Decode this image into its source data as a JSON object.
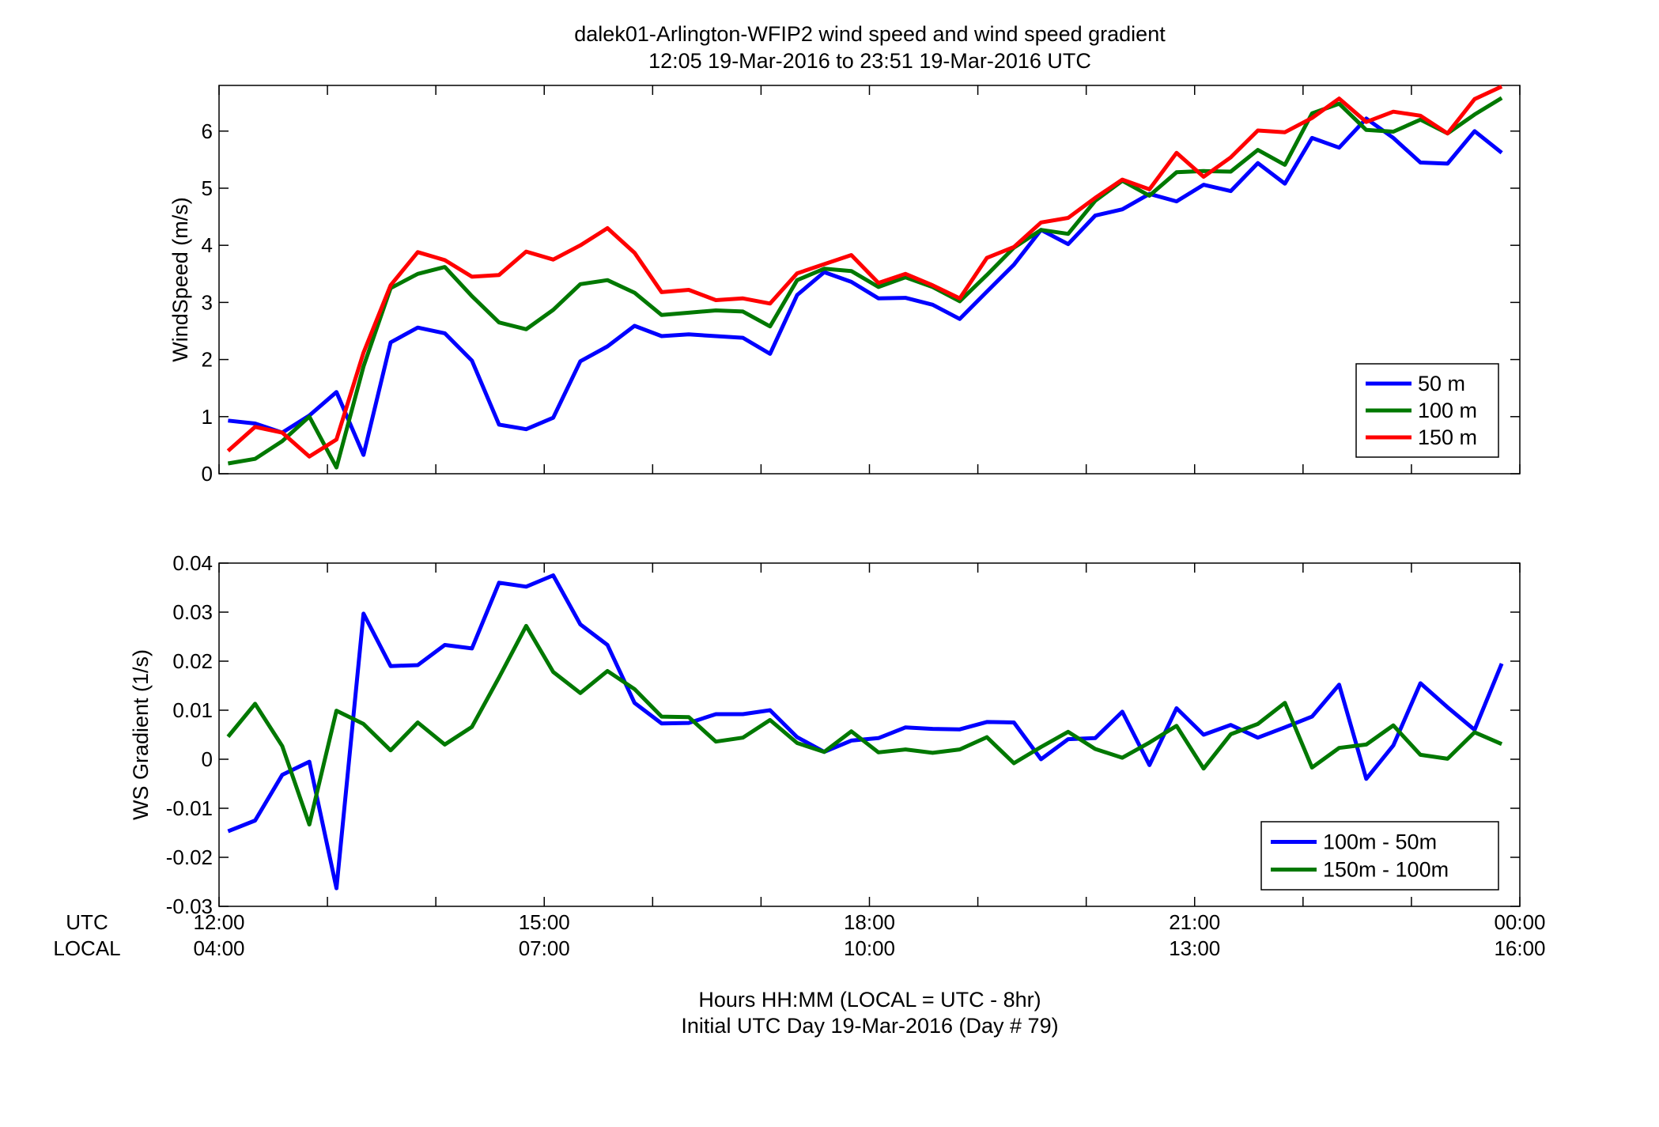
{
  "figure": {
    "title_line1": "dalek01-Arlington-WFIP2  wind speed and wind speed gradient",
    "title_line2": "12:05 19-Mar-2016 to 23:51 19-Mar-2016  UTC",
    "xlabel_line1": "Hours HH:MM  (LOCAL = UTC - 8hr)",
    "xlabel_line2": "Initial UTC Day 19-Mar-2016 (Day # 79)",
    "row_label_utc": "UTC",
    "row_label_local": "LOCAL",
    "x_ticks": [
      {
        "hour": 12,
        "utc": "12:00",
        "local": "04:00"
      },
      {
        "hour": 15,
        "utc": "15:00",
        "local": "07:00"
      },
      {
        "hour": 18,
        "utc": "18:00",
        "local": "10:00"
      },
      {
        "hour": 21,
        "utc": "21:00",
        "local": "13:00"
      },
      {
        "hour": 24,
        "utc": "00:00",
        "local": "16:00"
      }
    ]
  },
  "chart_data": [
    {
      "type": "line",
      "ylabel": "WindSpeed (m/s)",
      "xlim": [
        12,
        24
      ],
      "ylim": [
        0,
        6.8
      ],
      "y_ticks": [
        0,
        1,
        2,
        3,
        4,
        5,
        6
      ],
      "x_start": 12.083,
      "x_step": 0.25,
      "legend_position": "bottom-right",
      "series": [
        {
          "name": "50 m",
          "color": "#0000ff",
          "values": [
            0.93,
            0.88,
            0.72,
            1.02,
            1.43,
            0.33,
            2.3,
            2.56,
            2.46,
            1.98,
            0.86,
            0.78,
            0.98,
            1.97,
            2.23,
            2.59,
            2.41,
            2.44,
            2.41,
            2.38,
            2.1,
            3.13,
            3.53,
            3.36,
            3.07,
            3.08,
            2.96,
            2.71,
            3.19,
            3.66,
            4.27,
            4.02,
            4.52,
            4.63,
            4.9,
            4.77,
            5.06,
            4.95,
            5.44,
            5.08,
            5.88,
            5.71,
            6.22,
            5.88,
            5.45,
            5.43,
            6.0,
            5.62
          ]
        },
        {
          "name": "100 m",
          "color": "#007800",
          "values": [
            0.18,
            0.26,
            0.57,
            1.0,
            0.11,
            1.88,
            3.25,
            3.5,
            3.62,
            3.11,
            2.65,
            2.53,
            2.87,
            3.32,
            3.39,
            3.17,
            2.78,
            2.82,
            2.86,
            2.84,
            2.58,
            3.39,
            3.59,
            3.55,
            3.27,
            3.44,
            3.27,
            3.02,
            3.48,
            3.96,
            4.27,
            4.2,
            4.78,
            5.13,
            4.87,
            5.28,
            5.3,
            5.29,
            5.67,
            5.41,
            6.31,
            6.48,
            6.02,
            5.99,
            6.2,
            5.96,
            6.29,
            6.58
          ]
        },
        {
          "name": "150 m",
          "color": "#ff0000",
          "values": [
            0.4,
            0.82,
            0.72,
            0.3,
            0.6,
            2.12,
            3.3,
            3.88,
            3.74,
            3.45,
            3.48,
            3.89,
            3.75,
            4.0,
            4.3,
            3.87,
            3.18,
            3.22,
            3.04,
            3.07,
            2.98,
            3.51,
            3.67,
            3.83,
            3.34,
            3.5,
            3.3,
            3.07,
            3.78,
            3.97,
            4.4,
            4.48,
            4.83,
            5.15,
            4.98,
            5.62,
            5.2,
            5.54,
            6.01,
            5.98,
            6.23,
            6.57,
            6.16,
            6.34,
            6.27,
            5.96,
            6.56,
            6.78
          ]
        }
      ]
    },
    {
      "type": "line",
      "ylabel": "WS Gradient (1/s)",
      "xlim": [
        12,
        24
      ],
      "ylim": [
        -0.03,
        0.04
      ],
      "y_ticks": [
        -0.03,
        -0.02,
        -0.01,
        0,
        0.01,
        0.02,
        0.03,
        0.04
      ],
      "y_tick_labels": [
        "-0.03",
        "-0.02",
        "-0.01",
        "0",
        "0.01",
        "0.02",
        "0.03",
        "0.04"
      ],
      "x_start": 12.083,
      "x_step": 0.25,
      "legend_position": "bottom-right",
      "series": [
        {
          "name": "100m - 50m",
          "color": "#0000ff",
          "values": [
            -0.0147,
            -0.0125,
            -0.0032,
            -0.0005,
            -0.0263,
            0.0297,
            0.019,
            0.0192,
            0.0233,
            0.0226,
            0.036,
            0.0352,
            0.0375,
            0.0275,
            0.0233,
            0.0115,
            0.0073,
            0.0074,
            0.0092,
            0.0092,
            0.01,
            0.0045,
            0.0015,
            0.0038,
            0.0043,
            0.0065,
            0.0062,
            0.0061,
            0.0076,
            0.0075,
            0.0,
            0.0041,
            0.0043,
            0.0097,
            -0.0012,
            0.0104,
            0.005,
            0.007,
            0.0044,
            0.0065,
            0.0087,
            0.0152,
            -0.004,
            0.0028,
            0.0155,
            0.0106,
            0.006,
            0.0195
          ]
        },
        {
          "name": "150m - 100m",
          "color": "#007800",
          "values": [
            0.0046,
            0.0113,
            0.0027,
            -0.0133,
            0.0099,
            0.0072,
            0.0018,
            0.0075,
            0.003,
            0.0066,
            0.0167,
            0.0272,
            0.0178,
            0.0135,
            0.018,
            0.0143,
            0.0087,
            0.0086,
            0.0036,
            0.0044,
            0.008,
            0.0033,
            0.0015,
            0.0057,
            0.0014,
            0.002,
            0.0013,
            0.002,
            0.0045,
            -0.0008,
            0.0025,
            0.0056,
            0.0021,
            0.0003,
            0.0034,
            0.0068,
            -0.0019,
            0.0051,
            0.0072,
            0.0115,
            -0.0017,
            0.0023,
            0.003,
            0.0069,
            0.0009,
            0.0001,
            0.0055,
            0.0031
          ]
        }
      ]
    }
  ]
}
